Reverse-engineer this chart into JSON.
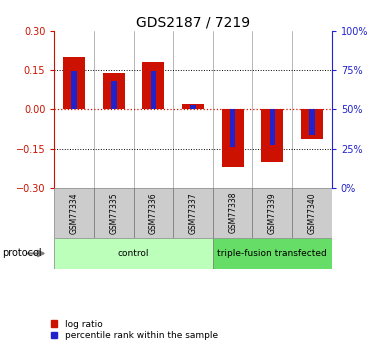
{
  "title": "GDS2187 / 7219",
  "samples": [
    "GSM77334",
    "GSM77335",
    "GSM77336",
    "GSM77337",
    "GSM77338",
    "GSM77339",
    "GSM77340"
  ],
  "log_ratio": [
    0.2,
    0.14,
    0.18,
    0.02,
    -0.22,
    -0.2,
    -0.115
  ],
  "percentile_rank": [
    0.148,
    0.107,
    0.148,
    0.015,
    -0.145,
    -0.138,
    -0.098
  ],
  "ylim": [
    -0.3,
    0.3
  ],
  "yticks_left": [
    -0.3,
    -0.15,
    0.0,
    0.15,
    0.3
  ],
  "yticks_right": [
    0,
    25,
    50,
    75,
    100
  ],
  "groups": [
    {
      "label": "control",
      "indices": [
        0,
        1,
        2,
        3
      ],
      "color": "#bbffbb"
    },
    {
      "label": "triple-fusion transfected",
      "indices": [
        4,
        5,
        6
      ],
      "color": "#66dd66"
    }
  ],
  "bar_color_red": "#cc1100",
  "bar_color_blue": "#2222cc",
  "background_label": "#cccccc",
  "title_fontsize": 10,
  "tick_fontsize": 7,
  "sample_fontsize": 5.5,
  "group_fontsize": 6.5,
  "legend_fontsize": 6.5,
  "legend_red_label": "log ratio",
  "legend_blue_label": "percentile rank within the sample",
  "protocol_label": "protocol"
}
